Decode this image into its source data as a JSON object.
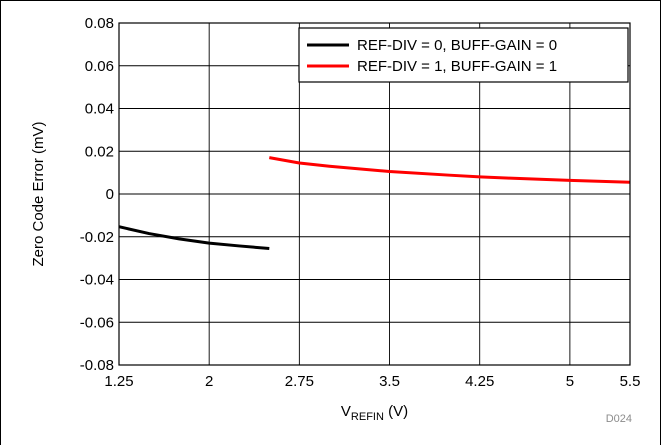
{
  "chart_data": {
    "type": "line",
    "xlabel_main": "V",
    "xlabel_sub": "REFIN",
    "xlabel_unit": " (V)",
    "ylabel": "Zero Code Error (mV)",
    "xlim": [
      1.25,
      5.5
    ],
    "ylim": [
      -0.08,
      0.08
    ],
    "x_ticks": [
      1.25,
      2,
      2.75,
      3.5,
      4.25,
      5,
      5.5
    ],
    "x_tick_labels": [
      "1.25",
      "2",
      "2.75",
      "3.5",
      "4.25",
      "5",
      "5.5"
    ],
    "y_ticks": [
      0.08,
      0.06,
      0.04,
      0.02,
      0,
      -0.02,
      -0.04,
      -0.06,
      -0.08
    ],
    "y_tick_labels": [
      "0.08",
      "0.06",
      "0.04",
      "0.02",
      "0",
      "-0.02",
      "-0.04",
      "-0.06",
      "-0.08"
    ],
    "grid": true,
    "legend_position": "top-right",
    "series": [
      {
        "name": "REF-DIV = 0, BUFF-GAIN = 0",
        "color": "#000000",
        "x": [
          1.25,
          1.5,
          1.75,
          2.0,
          2.25,
          2.5
        ],
        "y": [
          -0.0153,
          -0.0185,
          -0.021,
          -0.023,
          -0.0243,
          -0.0255
        ]
      },
      {
        "name": "REF-DIV = 1, BUFF-GAIN = 1",
        "color": "#ff0000",
        "x": [
          2.5,
          2.75,
          3.0,
          3.5,
          4.0,
          4.25,
          4.5,
          5.0,
          5.5
        ],
        "y": [
          0.017,
          0.0145,
          0.013,
          0.0105,
          0.0088,
          0.008,
          0.0074,
          0.0064,
          0.0055
        ]
      }
    ],
    "code_label": "D024"
  }
}
